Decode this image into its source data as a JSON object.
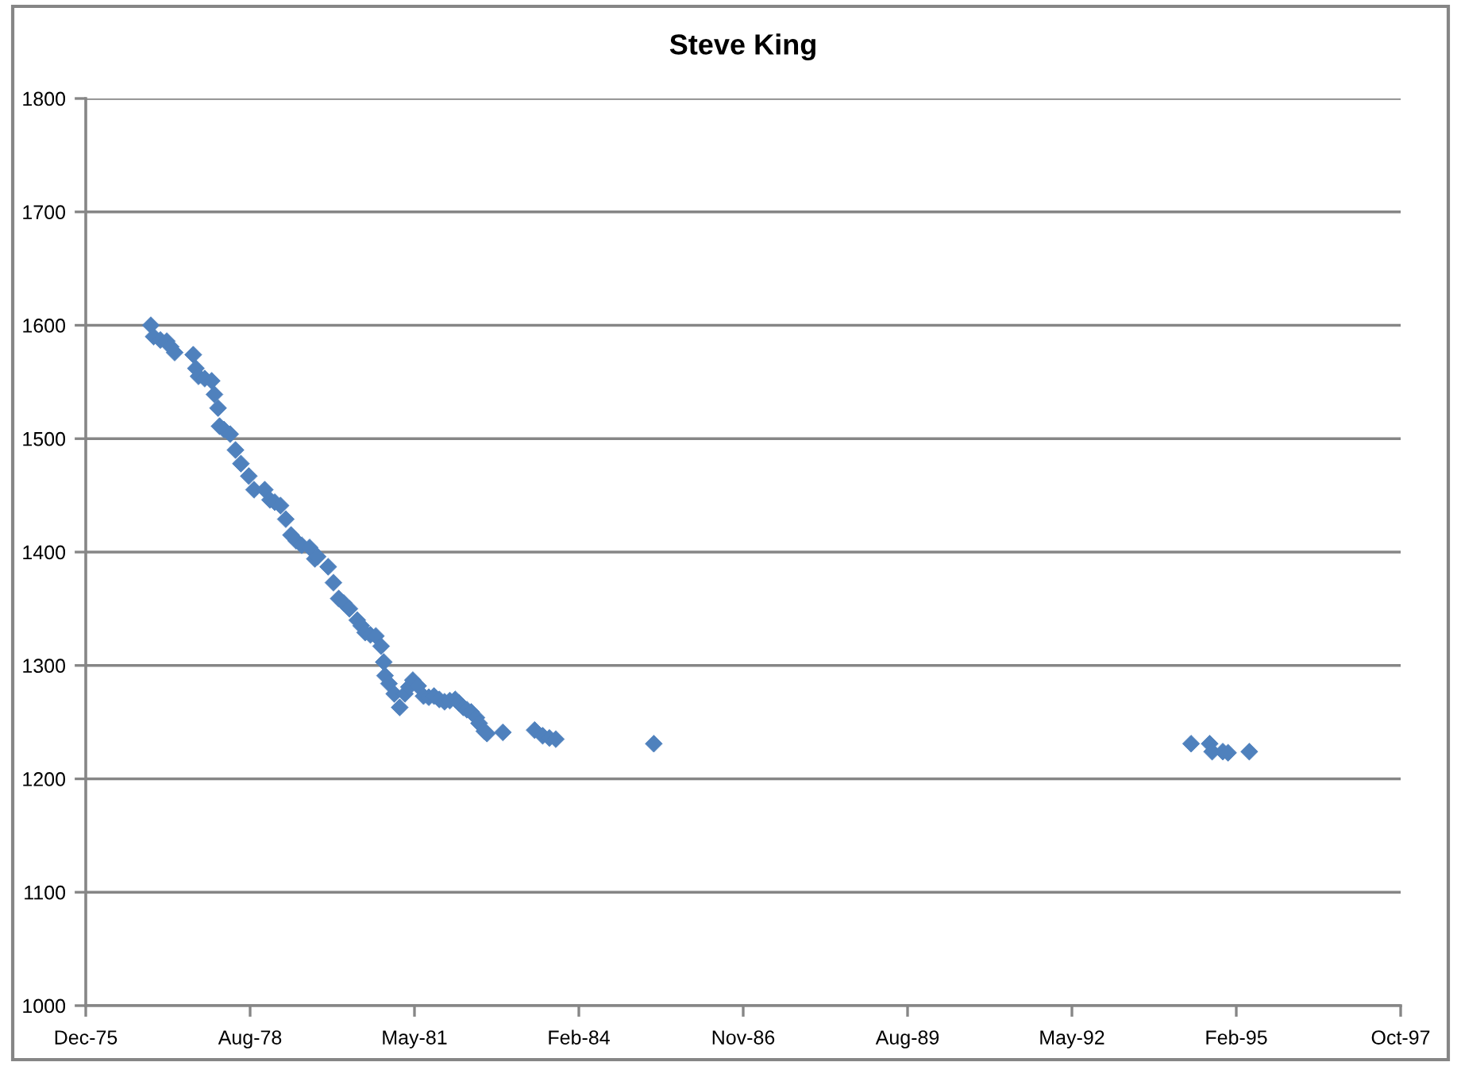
{
  "chart_data": {
    "type": "scatter",
    "title": "Steve King",
    "x": [
      "1977-01-03",
      "1977-01-20",
      "1977-03-02",
      "1977-04-10",
      "1977-05-04",
      "1977-05-28",
      "1977-09-18",
      "1977-10-04",
      "1977-10-20",
      "1977-11-27",
      "1978-01-08",
      "1978-01-25",
      "1978-02-16",
      "1978-02-25",
      "1978-03-24",
      "1978-05-01",
      "1978-06-02",
      "1978-07-05",
      "1978-08-22",
      "1978-09-23",
      "1978-11-27",
      "1978-12-29",
      "1979-01-27",
      "1979-03-03",
      "1979-04-04",
      "1979-05-06",
      "1979-06-06",
      "1979-07-10",
      "1979-08-27",
      "1979-09-28",
      "1979-10-15",
      "1979-12-18",
      "1980-01-19",
      "1980-02-20",
      "1980-03-22",
      "1980-04-25",
      "1980-06-12",
      "1980-07-06",
      "1980-07-30",
      "1980-08-31",
      "1980-10-03",
      "1980-11-04",
      "1980-11-20",
      "1980-11-28",
      "1980-12-22",
      "1981-01-23",
      "1981-02-25",
      "1981-03-29",
      "1981-04-22",
      "1981-05-16",
      "1981-06-17",
      "1981-07-20",
      "1981-08-21",
      "1981-09-22",
      "1981-10-24",
      "1981-11-25",
      "1981-12-27",
      "1982-01-29",
      "1982-02-20",
      "1982-03-19",
      "1982-04-10",
      "1982-05-06",
      "1982-06-07",
      "1982-06-23",
      "1982-07-25",
      "1982-08-10",
      "1982-11-15",
      "1983-05-27",
      "1983-07-15",
      "1983-08-25",
      "1983-10-03",
      "1985-05-21",
      "1994-05-03",
      "1994-08-24",
      "1994-09-08",
      "1994-11-12",
      "1994-12-14",
      "1995-04-22"
    ],
    "values": [
      1600,
      1590,
      1587,
      1586,
      1581,
      1576,
      1574,
      1562,
      1555,
      1553,
      1551,
      1539,
      1527,
      1511,
      1508,
      1504,
      1490,
      1478,
      1467,
      1455,
      1455,
      1446,
      1444,
      1441,
      1429,
      1415,
      1410,
      1406,
      1404,
      1394,
      1396,
      1387,
      1373,
      1359,
      1355,
      1350,
      1340,
      1335,
      1329,
      1327,
      1326,
      1317,
      1303,
      1291,
      1284,
      1275,
      1263,
      1275,
      1281,
      1287,
      1282,
      1273,
      1272,
      1273,
      1270,
      1268,
      1269,
      1270,
      1267,
      1263,
      1261,
      1259,
      1254,
      1249,
      1242,
      1240,
      1241,
      1243,
      1238,
      1236,
      1235,
      1231,
      1231,
      1231,
      1224,
      1224,
      1223,
      1224
    ],
    "color": "#4f81bd",
    "marker": "diamond",
    "xlim": [
      "1975-12-04",
      "1997-10-29"
    ],
    "xticks": [
      {
        "value": "1975-12-04",
        "label": "Dec-75"
      },
      {
        "value": "1978-08-30",
        "label": "Aug-78"
      },
      {
        "value": "1981-05-26",
        "label": "May-81"
      },
      {
        "value": "1984-02-20",
        "label": "Feb-84"
      },
      {
        "value": "1986-11-16",
        "label": "Nov-86"
      },
      {
        "value": "1989-08-12",
        "label": "Aug-89"
      },
      {
        "value": "1992-05-08",
        "label": "May-92"
      },
      {
        "value": "1995-02-02",
        "label": "Feb-95"
      },
      {
        "value": "1997-10-29",
        "label": "Oct-97"
      }
    ],
    "ylim": [
      1000,
      1800
    ],
    "yticks": [
      1000,
      1100,
      1200,
      1300,
      1400,
      1500,
      1600,
      1700,
      1800
    ],
    "grid": "y"
  }
}
